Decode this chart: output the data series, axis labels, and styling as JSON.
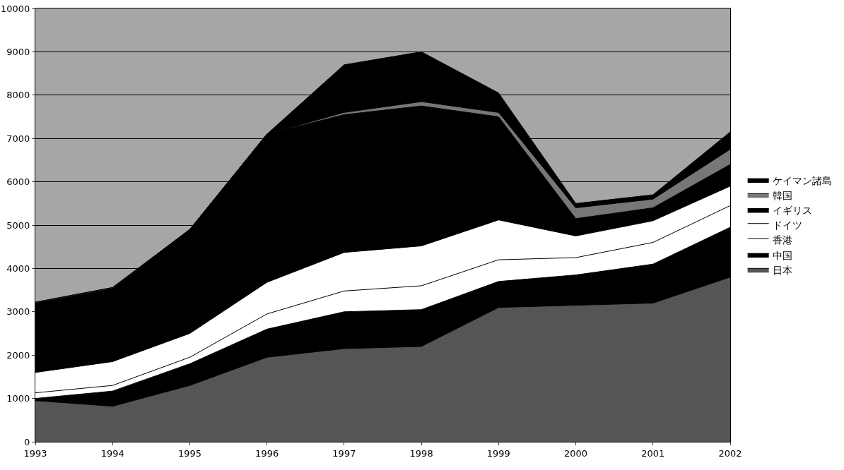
{
  "chart_data": {
    "type": "area",
    "stacked": true,
    "categories": [
      "1993",
      "1994",
      "1995",
      "1996",
      "1997",
      "1998",
      "1999",
      "2000",
      "2001",
      "2002"
    ],
    "series": [
      {
        "name": "日本",
        "color": "#555555",
        "values": [
          950,
          820,
          1300,
          1950,
          2150,
          2200,
          3100,
          3150,
          3200,
          3800
        ]
      },
      {
        "name": "中国",
        "color": "#000000",
        "values": [
          50,
          350,
          500,
          650,
          850,
          850,
          600,
          700,
          900,
          1150
        ]
      },
      {
        "name": "香港",
        "color": "#ffffff",
        "values": [
          130,
          130,
          150,
          350,
          480,
          550,
          500,
          400,
          500,
          500
        ]
      },
      {
        "name": "ドイツ",
        "color": "#ffffff",
        "values": [
          470,
          550,
          550,
          730,
          890,
          920,
          920,
          500,
          500,
          450
        ]
      },
      {
        "name": "イギリス",
        "color": "#000000",
        "values": [
          1600,
          1690,
          2400,
          3420,
          3180,
          3230,
          2380,
          400,
          300,
          500
        ]
      },
      {
        "name": "韓国",
        "color": "#777777",
        "values": [
          20,
          20,
          0,
          0,
          50,
          100,
          100,
          250,
          200,
          350
        ]
      },
      {
        "name": "ケイマン諸島",
        "color": "#000000",
        "values": [
          0,
          0,
          0,
          0,
          1100,
          1150,
          450,
          100,
          100,
          400
        ]
      }
    ],
    "ylim": [
      0,
      10000
    ],
    "yticks": [
      0,
      1000,
      2000,
      3000,
      4000,
      5000,
      6000,
      7000,
      8000,
      9000,
      10000
    ],
    "grid": "y",
    "legend": "right"
  }
}
